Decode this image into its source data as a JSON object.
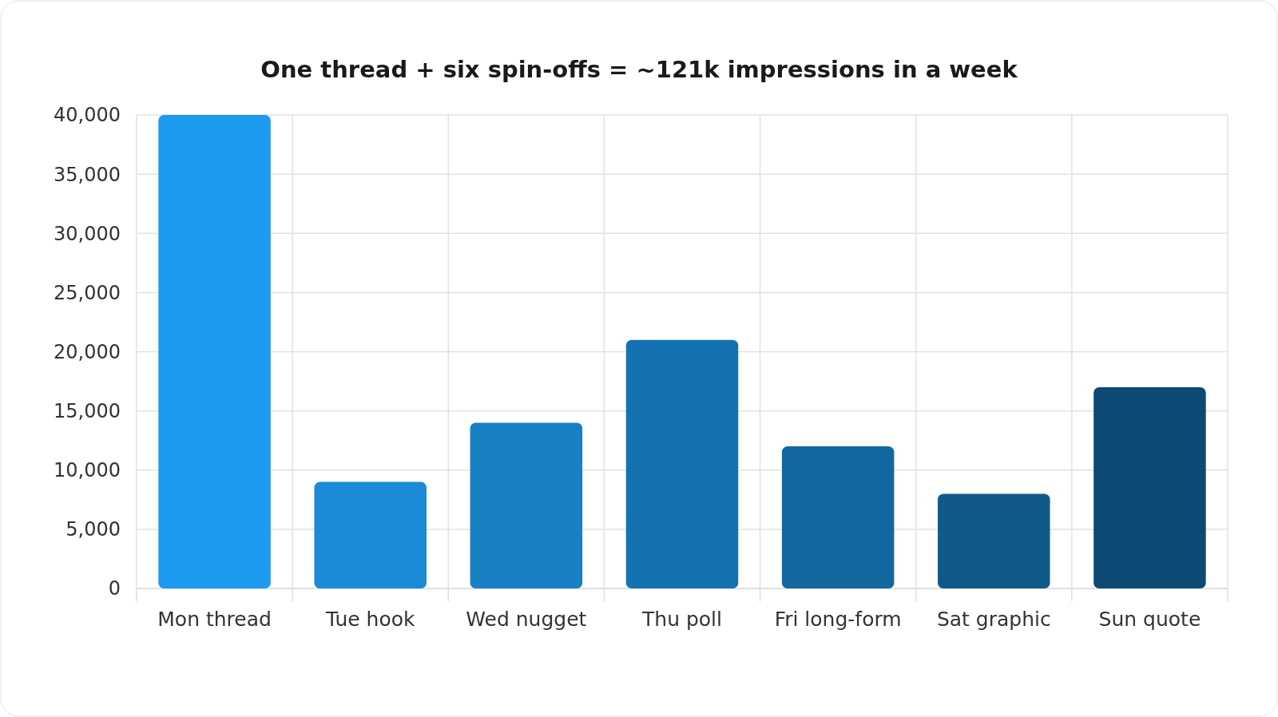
{
  "chart_data": {
    "type": "bar",
    "title": "One thread + six spin-offs = ~121k impressions in a week",
    "categories": [
      "Mon thread",
      "Tue hook",
      "Wed nugget",
      "Thu poll",
      "Fri long-form",
      "Sat graphic",
      "Sun quote"
    ],
    "values": [
      40000,
      9000,
      14000,
      21000,
      12000,
      8000,
      17000
    ],
    "colors": [
      "#1d9bf0",
      "#1a8ad9",
      "#1780c2",
      "#1572b0",
      "#12679e",
      "#105a8a",
      "#0d4a73"
    ],
    "ylim": [
      0,
      40000
    ],
    "yticks": [
      {
        "value": 0,
        "label": "0"
      },
      {
        "value": 5000,
        "label": "5,000"
      },
      {
        "value": 10000,
        "label": "10,000"
      },
      {
        "value": 15000,
        "label": "15,000"
      },
      {
        "value": 20000,
        "label": "20,000"
      },
      {
        "value": 25000,
        "label": "25,000"
      },
      {
        "value": 30000,
        "label": "30,000"
      },
      {
        "value": 35000,
        "label": "35,000"
      },
      {
        "value": 40000,
        "label": "40,000"
      }
    ],
    "grid": true
  }
}
